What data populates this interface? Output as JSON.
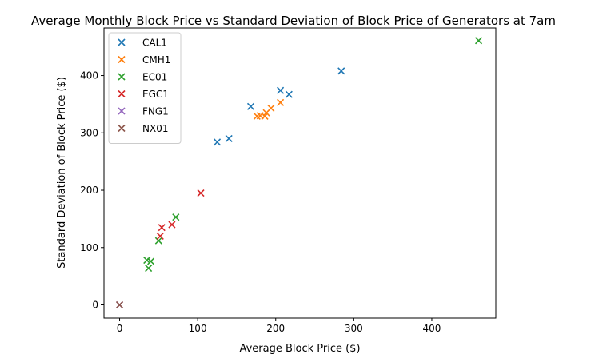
{
  "chart_data": {
    "type": "scatter",
    "title": "Average Monthly Block Price vs Standard Deviation of Block Price of Generators at 7am",
    "xlabel": "Average Block Price ($)",
    "ylabel": "Standard Deviation of Block Price ($)",
    "xlim": [
      -20,
      482
    ],
    "ylim": [
      -23,
      483
    ],
    "xticks": [
      0,
      100,
      200,
      300,
      400
    ],
    "yticks": [
      0,
      100,
      200,
      300,
      400
    ],
    "grid": false,
    "legend_position": "top-left",
    "marker": "x",
    "series": [
      {
        "name": "CAL1",
        "color": "#1f77b4",
        "points": [
          [
            125,
            284
          ],
          [
            140,
            290
          ],
          [
            168,
            346
          ],
          [
            206,
            374
          ],
          [
            217,
            367
          ],
          [
            284,
            408
          ]
        ]
      },
      {
        "name": "CMH1",
        "color": "#ff7f0e",
        "points": [
          [
            176,
            329
          ],
          [
            180,
            330
          ],
          [
            186,
            329
          ],
          [
            188,
            335
          ],
          [
            194,
            343
          ],
          [
            206,
            353
          ]
        ]
      },
      {
        "name": "EC01",
        "color": "#2ca02c",
        "points": [
          [
            35,
            78
          ],
          [
            37,
            64
          ],
          [
            40,
            76
          ],
          [
            50,
            112
          ],
          [
            72,
            153
          ],
          [
            460,
            461
          ]
        ]
      },
      {
        "name": "EGC1",
        "color": "#d62728",
        "points": [
          [
            52,
            120
          ],
          [
            54,
            135
          ],
          [
            67,
            140
          ],
          [
            104,
            195
          ]
        ]
      },
      {
        "name": "FNG1",
        "color": "#9467bd",
        "points": [
          [
            0,
            0
          ]
        ]
      },
      {
        "name": "NX01",
        "color": "#8c564b",
        "points": [
          [
            0,
            0
          ]
        ]
      }
    ]
  }
}
